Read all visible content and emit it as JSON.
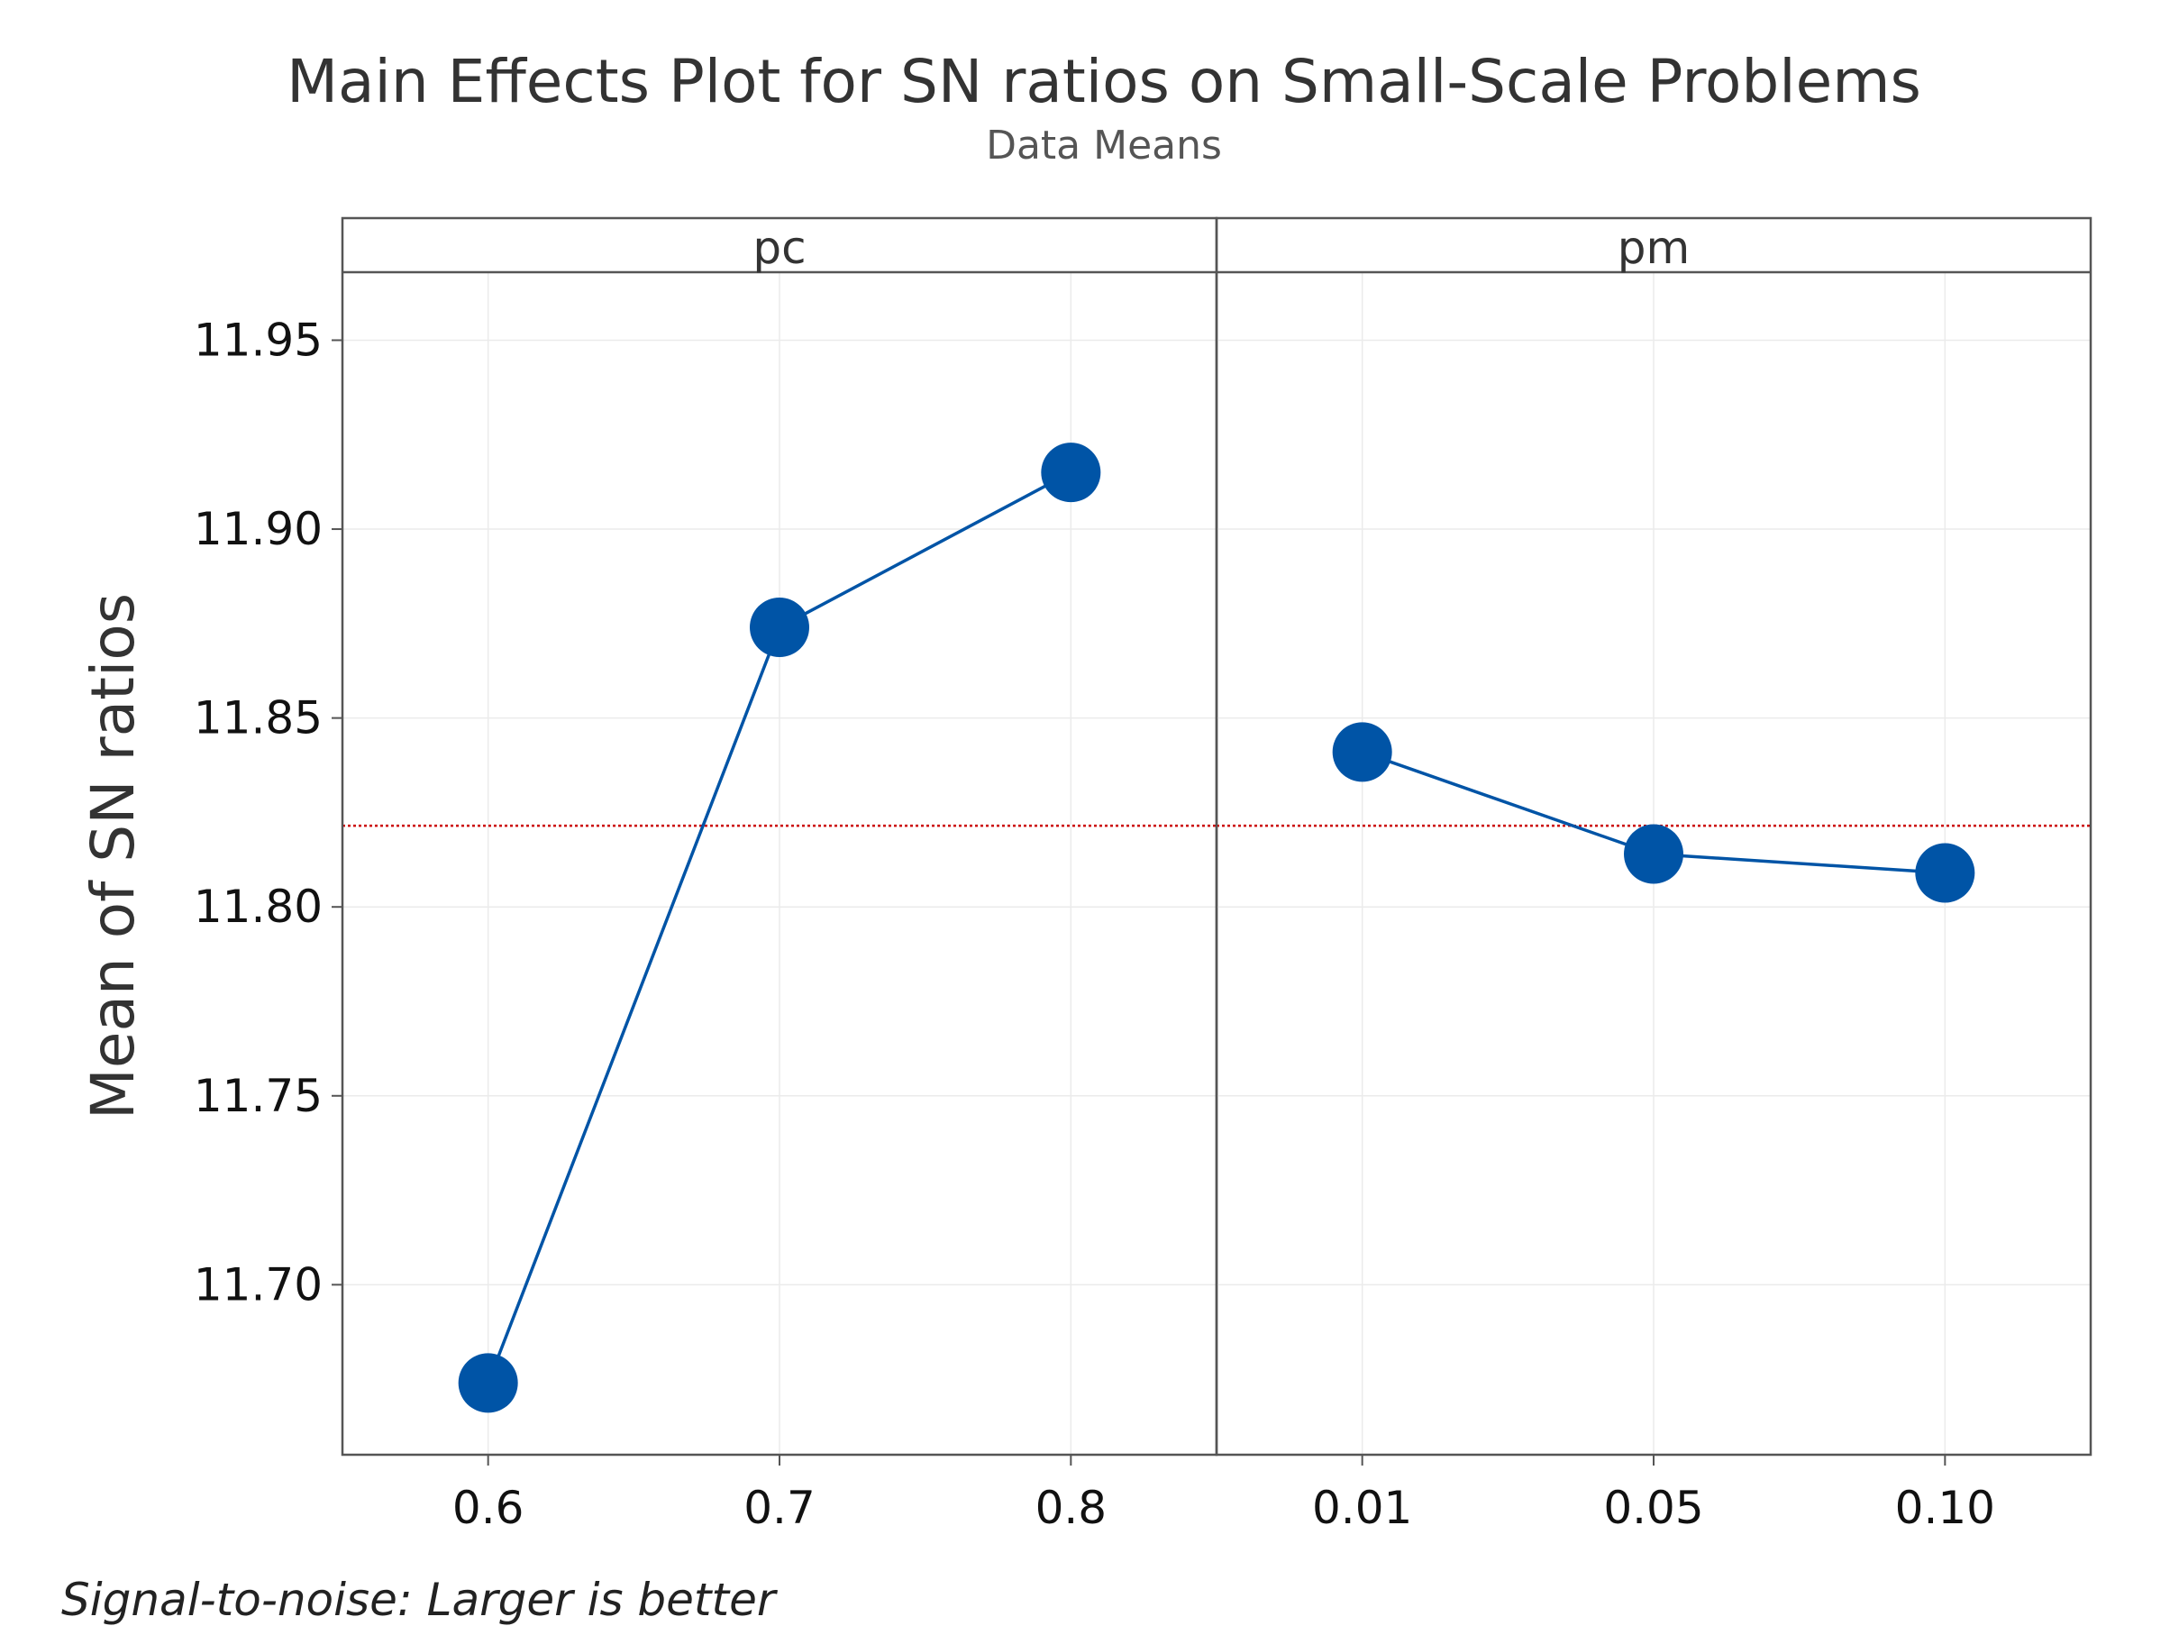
{
  "chart_data": {
    "type": "line",
    "title": "Main Effects Plot for SN ratios on Small-Scale Problems",
    "subtitle": "Data Means",
    "ylabel": "Mean of SN ratios",
    "footnote": "Signal-to-noise: Larger is better",
    "ylim": [
      11.655,
      11.968
    ],
    "yticks": [
      "11.70",
      "11.75",
      "11.80",
      "11.85",
      "11.90",
      "11.95"
    ],
    "reference_line": {
      "value": 11.8215,
      "style": "dotted",
      "color": "#cc0000"
    },
    "grid": true,
    "marker_color": "#0054a6",
    "panels": [
      {
        "name": "pc",
        "categories": [
          "0.6",
          "0.7",
          "0.8"
        ],
        "values": [
          11.674,
          11.874,
          11.915
        ]
      },
      {
        "name": "pm",
        "categories": [
          "0.01",
          "0.05",
          "0.10"
        ],
        "values": [
          11.841,
          11.814,
          11.809
        ]
      }
    ]
  }
}
